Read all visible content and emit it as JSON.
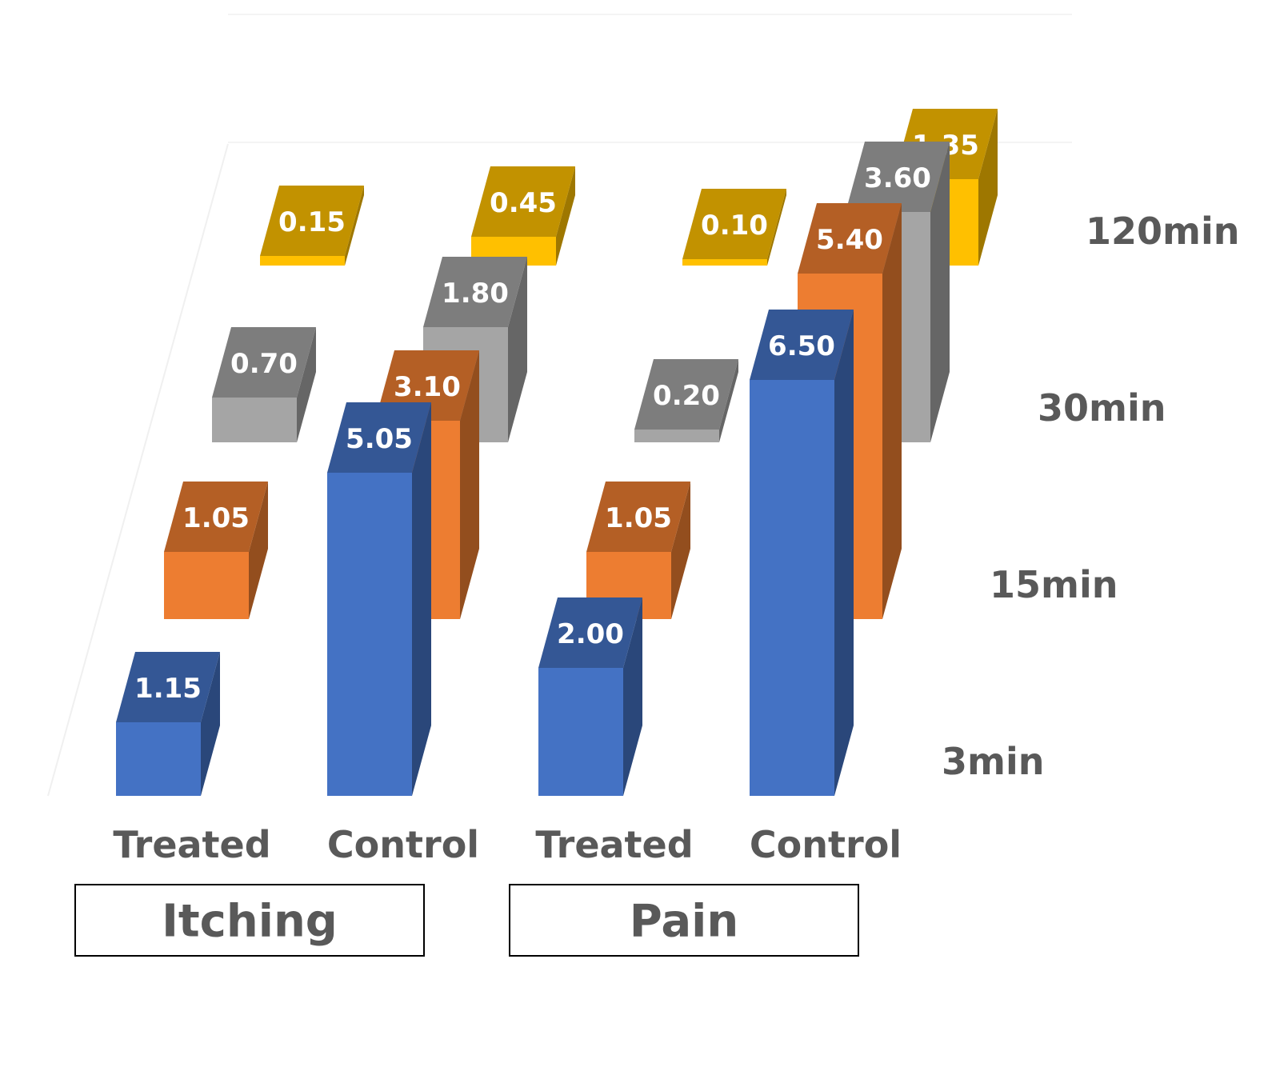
{
  "chart_data": {
    "type": "bar",
    "style": "3d-column",
    "categories": [
      "Treated",
      "Control",
      "Treated",
      "Control"
    ],
    "groups": [
      {
        "label": "Itching",
        "categories": [
          0,
          1
        ]
      },
      {
        "label": "Pain",
        "categories": [
          2,
          3
        ]
      }
    ],
    "depth_labels": [
      "3min",
      "15min",
      "30min",
      "120min"
    ],
    "series": [
      {
        "name": "3min",
        "color": "#4472C4",
        "values": [
          1.15,
          5.05,
          2.0,
          6.5
        ],
        "labels": [
          "1.15",
          "5.05",
          "2.00",
          "6.50"
        ]
      },
      {
        "name": "15min",
        "color": "#ED7D31",
        "values": [
          1.05,
          3.1,
          1.05,
          5.4
        ],
        "labels": [
          "1.05",
          "3.10",
          "1.05",
          "5.40"
        ]
      },
      {
        "name": "30min",
        "color": "#A5A5A5",
        "values": [
          0.7,
          1.8,
          0.2,
          3.6
        ],
        "labels": [
          "0.70",
          "1.80",
          "0.20",
          "3.60"
        ]
      },
      {
        "name": "120min",
        "color": "#FFC000",
        "values": [
          0.15,
          0.45,
          0.1,
          1.35
        ],
        "labels": [
          "0.15",
          "0.45",
          "0.10",
          "1.35"
        ]
      }
    ],
    "value_labels": true,
    "gridlines": false,
    "legend": "none"
  }
}
